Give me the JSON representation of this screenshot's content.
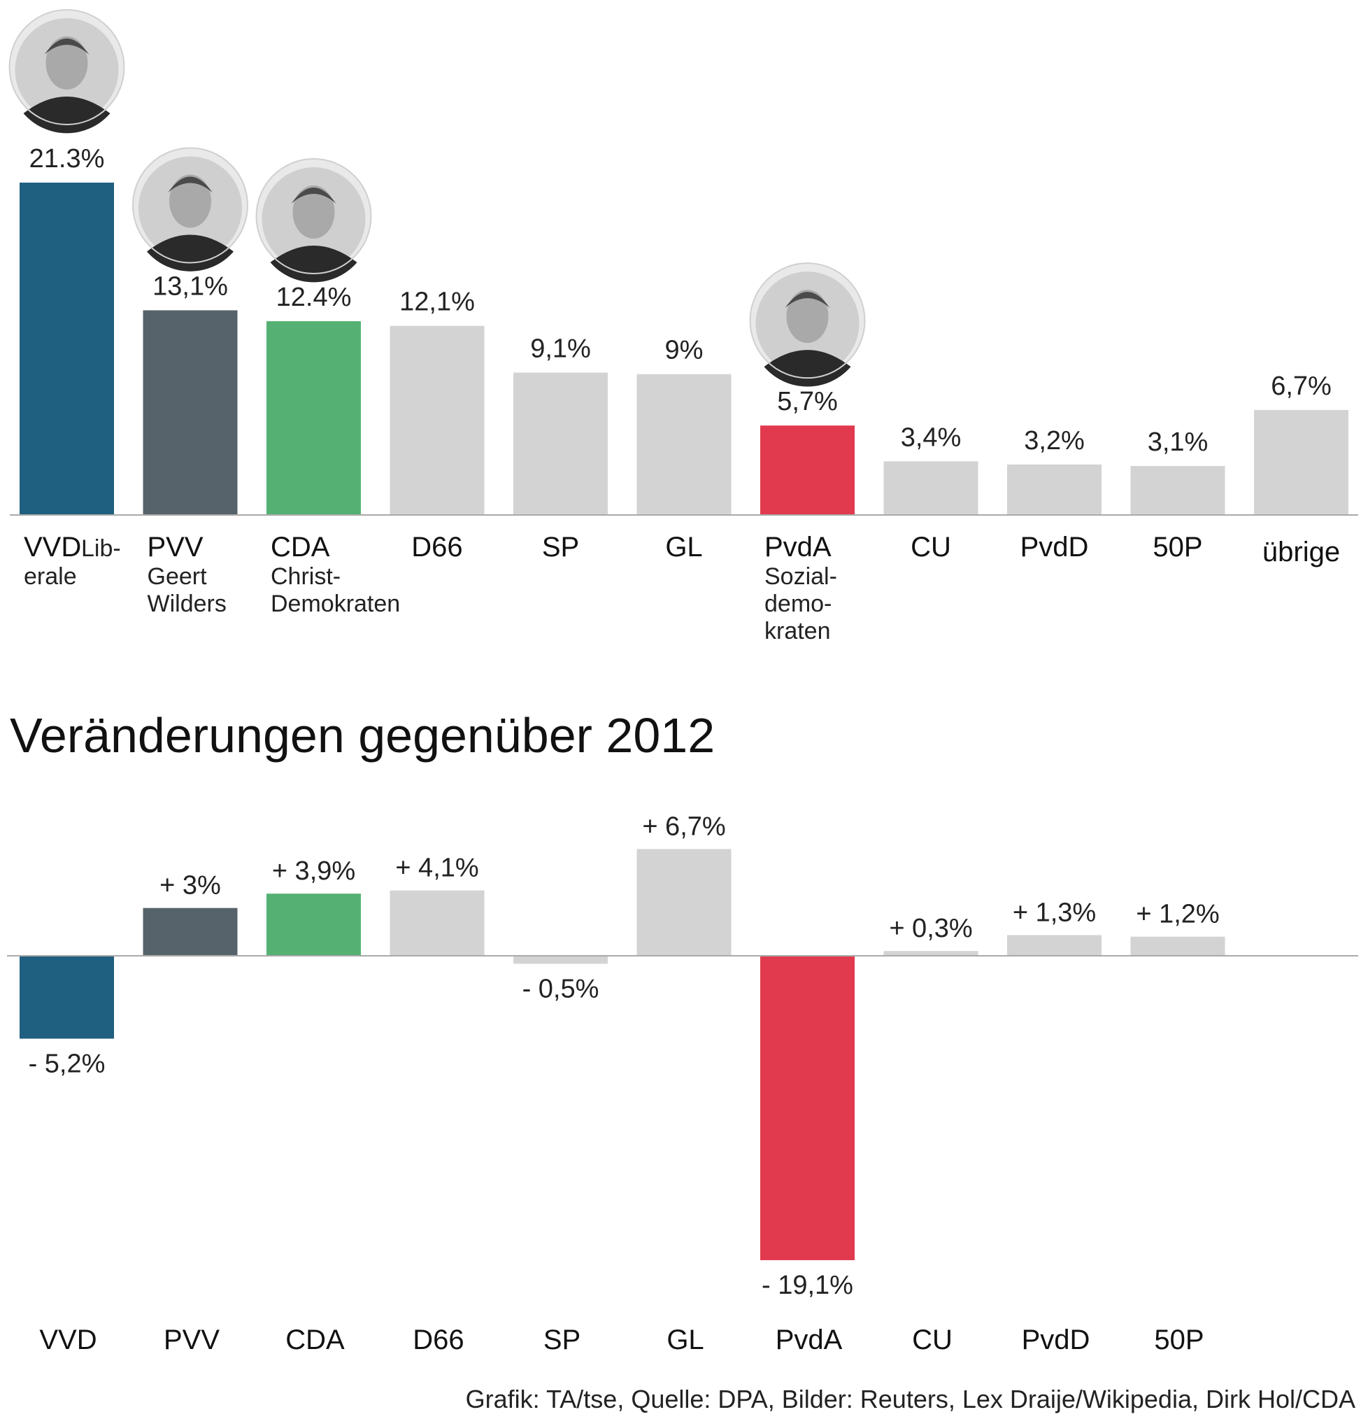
{
  "colors": {
    "VVD": "#1f5f80",
    "PVV": "#56636b",
    "CDA": "#55b173",
    "PvdA": "#e13a4f",
    "other": "#d3d3d3",
    "axis": "#aaaaaa"
  },
  "chart_data": [
    {
      "type": "bar",
      "title": "",
      "xlabel": "",
      "ylabel": "",
      "ylim": [
        0,
        21.3
      ],
      "categories": [
        "VVD",
        "PVV",
        "CDA",
        "D66",
        "SP",
        "GL",
        "PvdA",
        "CU",
        "PvdD",
        "50P",
        "übrige"
      ],
      "values": [
        21.3,
        13.1,
        12.4,
        12.1,
        9.1,
        9,
        5.7,
        3.4,
        3.2,
        3.1,
        6.7
      ],
      "value_labels": [
        "21.3%",
        "13,1%",
        "12.4%",
        "12,1%",
        "9,1%",
        "9%",
        "5,7%",
        "3,4%",
        "3,2%",
        "3,1%",
        "6,7%"
      ],
      "sublabels": [
        [
          "Lib-",
          "erale"
        ],
        [
          "Geert",
          "Wilders"
        ],
        [
          "Christ-",
          "Demokraten"
        ],
        [],
        [],
        [],
        [
          "Sozial-",
          "demo-",
          "kraten"
        ],
        [],
        [],
        [],
        []
      ],
      "portraits": [
        "VVD",
        "PVV",
        "CDA",
        "PvdA"
      ]
    },
    {
      "type": "bar",
      "title": "Veränderungen gegenüber 2012",
      "xlabel": "",
      "ylabel": "",
      "categories": [
        "VVD",
        "PVV",
        "CDA",
        "D66",
        "SP",
        "GL",
        "PvdA",
        "CU",
        "PvdD",
        "50P"
      ],
      "values": [
        -5.2,
        3,
        3.9,
        4.1,
        -0.5,
        6.7,
        -19.1,
        0.3,
        1.3,
        1.2
      ],
      "value_labels": [
        "- 5,2%",
        "+ 3%",
        "+ 3,9%",
        "+ 4,1%",
        "- 0,5%",
        "+ 6,7%",
        "- 19,1%",
        "+ 0,3%",
        "+ 1,3%",
        "+ 1,2%"
      ]
    }
  ],
  "credit": "Grafik: TA/tse, Quelle: DPA, Bilder: Reuters, Lex Draije/Wikipedia, Dirk Hol/CDA"
}
